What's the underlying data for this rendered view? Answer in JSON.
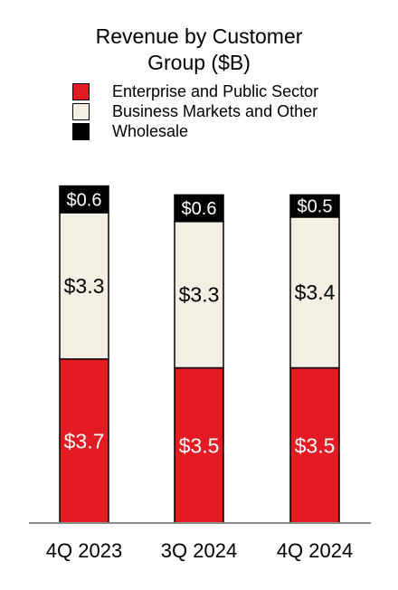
{
  "chart_data": {
    "type": "bar",
    "stacked": true,
    "title": "Revenue by Customer Group ($B)",
    "title_lines": [
      "Revenue by Customer",
      "Group ($B)"
    ],
    "categories": [
      "4Q 2023",
      "3Q 2024",
      "4Q 2024"
    ],
    "series": [
      {
        "name": "Enterprise and Public Sector",
        "values": [
          3.7,
          3.5,
          3.5
        ],
        "labels": [
          "$3.7",
          "$3.5",
          "$3.5"
        ],
        "color": "#e31b23",
        "label_color": "#ffffff"
      },
      {
        "name": "Business Markets and Other",
        "values": [
          3.3,
          3.3,
          3.4
        ],
        "labels": [
          "$3.3",
          "$3.3",
          "$3.4"
        ],
        "color": "#f3efe3",
        "label_color": "#000000"
      },
      {
        "name": "Wholesale",
        "values": [
          0.6,
          0.6,
          0.5
        ],
        "labels": [
          "$0.6",
          "$0.6",
          "$0.5"
        ],
        "color": "#000000",
        "label_color": "#ffffff"
      }
    ],
    "legend_position": "top",
    "grid": false,
    "xlabel": "",
    "ylabel": ""
  }
}
